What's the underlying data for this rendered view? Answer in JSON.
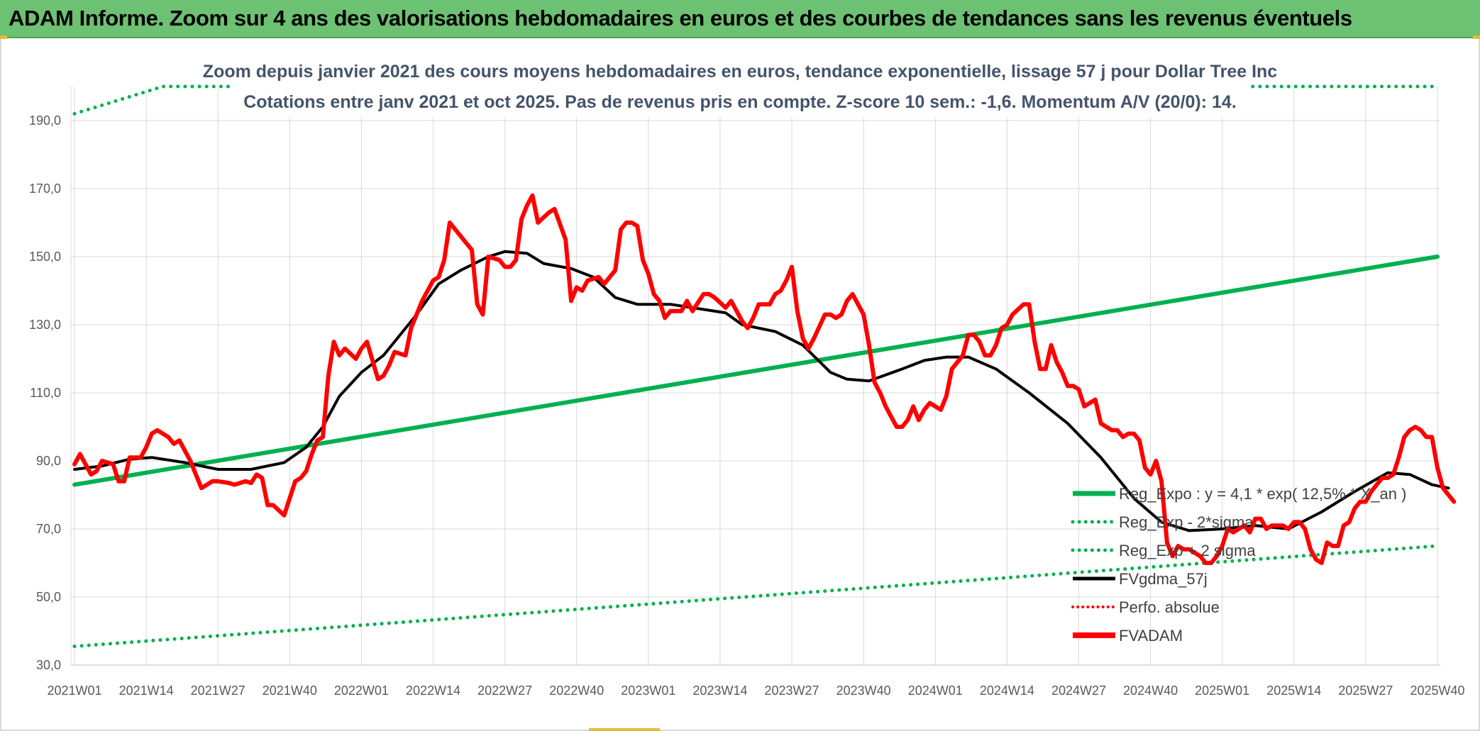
{
  "banner": {
    "title": "ADAM Informe. Zoom sur 4 ans des valorisations hebdomadaires en euros et des courbes de tendances sans les revenus éventuels"
  },
  "chart_data": {
    "type": "line",
    "title_line1": "Zoom depuis janvier 2021 des cours moyens hebdomadaires en euros, tendance exponentielle, lissage 57 j pour Dollar Tree Inc",
    "title_line2": "Cotations entre janv 2021 et oct 2025. Pas de revenus pris en compte. Z-score 10 sem.: -1,6. Momentum A/V (20/0): 14.",
    "ylim": [
      30,
      200
    ],
    "y_ticks": [
      "190,0",
      "170,0",
      "150,0",
      "130,0",
      "110,0",
      "90,0",
      "70,0",
      "50,0",
      "30,0"
    ],
    "y_tick_values": [
      190,
      170,
      150,
      130,
      110,
      90,
      70,
      50,
      30
    ],
    "x_tick_labels": [
      "2021W01",
      "2021W14",
      "2021W27",
      "2021W40",
      "2022W01",
      "2022W14",
      "2022W27",
      "2022W40",
      "2023W01",
      "2023W14",
      "2023W27",
      "2023W40",
      "2024W01",
      "2024W14",
      "2024W27",
      "2024W40",
      "2025W01",
      "2025W14",
      "2025W27",
      "2025W40"
    ],
    "x_tick_weeks": [
      0,
      13,
      26,
      39,
      52,
      65,
      78,
      91,
      104,
      117,
      130,
      143,
      156,
      169,
      182,
      195,
      208,
      221,
      234,
      247
    ],
    "x_max_week": 247,
    "legend": [
      "Reg_Expo : y = 4,1 * exp( 12,5% * X_an )",
      "Reg_Exp - 2*sigma",
      "Reg_Exp + 2 sigma",
      "FVgdma_57j",
      "Perfo. absolue",
      "FVADAM"
    ],
    "colors": {
      "reg": "#00b050",
      "reg_dotted": "#00b050",
      "smooth": "#000000",
      "perfo": "#ff0000",
      "fvadam": "#ff0000"
    },
    "series": [
      {
        "name": "Reg_Expo",
        "points": [
          [
            0,
            83
          ],
          [
            247,
            150
          ]
        ]
      },
      {
        "name": "Reg_Exp - 2*sigma",
        "points": [
          [
            0,
            35.5
          ],
          [
            247,
            65
          ]
        ]
      },
      {
        "name": "Reg_Exp + 2 sigma",
        "points": [
          [
            0,
            192
          ],
          [
            16,
            200
          ],
          [
            247,
            200
          ]
        ]
      },
      {
        "name": "FVgdma_57j",
        "points": [
          [
            0,
            87.5
          ],
          [
            5,
            88.5
          ],
          [
            10,
            90.5
          ],
          [
            14,
            91
          ],
          [
            20,
            89.5
          ],
          [
            26,
            87.5
          ],
          [
            32,
            87.5
          ],
          [
            38,
            89.5
          ],
          [
            42,
            94
          ],
          [
            45,
            100
          ],
          [
            48,
            109
          ],
          [
            52,
            116
          ],
          [
            56,
            121
          ],
          [
            62,
            133
          ],
          [
            66,
            142
          ],
          [
            70,
            146
          ],
          [
            75,
            150
          ],
          [
            78,
            151.5
          ],
          [
            82,
            151
          ],
          [
            85,
            148
          ],
          [
            90,
            146.5
          ],
          [
            94,
            144
          ],
          [
            98,
            138
          ],
          [
            102,
            136
          ],
          [
            108,
            136
          ],
          [
            114,
            134.5
          ],
          [
            118,
            133.5
          ],
          [
            121,
            130
          ],
          [
            127,
            128
          ],
          [
            132,
            124
          ],
          [
            137,
            116
          ],
          [
            140,
            114
          ],
          [
            144,
            113.5
          ],
          [
            150,
            117
          ],
          [
            154,
            119.5
          ],
          [
            158,
            120.5
          ],
          [
            162,
            120.5
          ],
          [
            167,
            117
          ],
          [
            173,
            110
          ],
          [
            180,
            101
          ],
          [
            186,
            91
          ],
          [
            192,
            79
          ],
          [
            197,
            72
          ],
          [
            202,
            69.5
          ],
          [
            208,
            70
          ],
          [
            214,
            71
          ],
          [
            220,
            70
          ],
          [
            226,
            75
          ],
          [
            232,
            81
          ],
          [
            238,
            86.5
          ],
          [
            242,
            86
          ],
          [
            246,
            83
          ],
          [
            249,
            82
          ]
        ]
      },
      {
        "name": "FVADAM",
        "points": [
          [
            0,
            89
          ],
          [
            1,
            92
          ],
          [
            3,
            86
          ],
          [
            4,
            87
          ],
          [
            5,
            90
          ],
          [
            7,
            89
          ],
          [
            8,
            84
          ],
          [
            9,
            84
          ],
          [
            10,
            91
          ],
          [
            12,
            91
          ],
          [
            13,
            94
          ],
          [
            14,
            98
          ],
          [
            15,
            99
          ],
          [
            16,
            98
          ],
          [
            17,
            97
          ],
          [
            18,
            95
          ],
          [
            19,
            96
          ],
          [
            21,
            90
          ],
          [
            23,
            82
          ],
          [
            25,
            84
          ],
          [
            26,
            84
          ],
          [
            28,
            83.5
          ],
          [
            29,
            83
          ],
          [
            31,
            84
          ],
          [
            32,
            83.5
          ],
          [
            33,
            86
          ],
          [
            34,
            85
          ],
          [
            35,
            77
          ],
          [
            36,
            77
          ],
          [
            38,
            74
          ],
          [
            40,
            84
          ],
          [
            41,
            85
          ],
          [
            42,
            87
          ],
          [
            43,
            92
          ],
          [
            44,
            96
          ],
          [
            45,
            97
          ],
          [
            46,
            115
          ],
          [
            47,
            125
          ],
          [
            48,
            121
          ],
          [
            49,
            123
          ],
          [
            51,
            120
          ],
          [
            52,
            123
          ],
          [
            53,
            125
          ],
          [
            55,
            114
          ],
          [
            56,
            115
          ],
          [
            57,
            118
          ],
          [
            58,
            122
          ],
          [
            60,
            121
          ],
          [
            61,
            129
          ],
          [
            63,
            137
          ],
          [
            65,
            143
          ],
          [
            66,
            144
          ],
          [
            67,
            149
          ],
          [
            68,
            160
          ],
          [
            70,
            156
          ],
          [
            72,
            152
          ],
          [
            73,
            136
          ],
          [
            74,
            133
          ],
          [
            75,
            150
          ],
          [
            77,
            149
          ],
          [
            78,
            147
          ],
          [
            79,
            147
          ],
          [
            80,
            149
          ],
          [
            81,
            161
          ],
          [
            82,
            165
          ],
          [
            83,
            168
          ],
          [
            84,
            160
          ],
          [
            86,
            163
          ],
          [
            87,
            164
          ],
          [
            89,
            155
          ],
          [
            90,
            137
          ],
          [
            91,
            141
          ],
          [
            92,
            140
          ],
          [
            93,
            143
          ],
          [
            95,
            144
          ],
          [
            96,
            142
          ],
          [
            97,
            144
          ],
          [
            98,
            146
          ],
          [
            99,
            158
          ],
          [
            100,
            160
          ],
          [
            101,
            160
          ],
          [
            102,
            159
          ],
          [
            103,
            149
          ],
          [
            104,
            145
          ],
          [
            105,
            139
          ],
          [
            106,
            137
          ],
          [
            107,
            132
          ],
          [
            108,
            134
          ],
          [
            110,
            134
          ],
          [
            111,
            137
          ],
          [
            112,
            134
          ],
          [
            114,
            139
          ],
          [
            115,
            139
          ],
          [
            116,
            138
          ],
          [
            118,
            135
          ],
          [
            119,
            137
          ],
          [
            120,
            134
          ],
          [
            121,
            131
          ],
          [
            122,
            129
          ],
          [
            123,
            132
          ],
          [
            124,
            136
          ],
          [
            126,
            136
          ],
          [
            127,
            139
          ],
          [
            128,
            140
          ],
          [
            129,
            143
          ],
          [
            130,
            147
          ],
          [
            131,
            134
          ],
          [
            132,
            126
          ],
          [
            133,
            123
          ],
          [
            134,
            126
          ],
          [
            136,
            133
          ],
          [
            137,
            133
          ],
          [
            138,
            132
          ],
          [
            139,
            133
          ],
          [
            140,
            137
          ],
          [
            141,
            139
          ],
          [
            142,
            136
          ],
          [
            143,
            133
          ],
          [
            144,
            124
          ],
          [
            145,
            113
          ],
          [
            146,
            110
          ],
          [
            147,
            106
          ],
          [
            148,
            103
          ],
          [
            149,
            100
          ],
          [
            150,
            100
          ],
          [
            151,
            102
          ],
          [
            152,
            106
          ],
          [
            153,
            102
          ],
          [
            154,
            105
          ],
          [
            155,
            107
          ],
          [
            156,
            106
          ],
          [
            157,
            105
          ],
          [
            158,
            109
          ],
          [
            159,
            117
          ],
          [
            160,
            119
          ],
          [
            161,
            121
          ],
          [
            162,
            127
          ],
          [
            163,
            127
          ],
          [
            164,
            125
          ],
          [
            165,
            121
          ],
          [
            166,
            121
          ],
          [
            167,
            124
          ],
          [
            168,
            129
          ],
          [
            169,
            130
          ],
          [
            170,
            133
          ],
          [
            172,
            136
          ],
          [
            173,
            136
          ],
          [
            174,
            125
          ],
          [
            175,
            117
          ],
          [
            176,
            117
          ],
          [
            177,
            124
          ],
          [
            178,
            119
          ],
          [
            179,
            116
          ],
          [
            180,
            112
          ],
          [
            181,
            112
          ],
          [
            182,
            111
          ],
          [
            183,
            106
          ],
          [
            184,
            107
          ],
          [
            185,
            108
          ],
          [
            186,
            101
          ],
          [
            188,
            99
          ],
          [
            189,
            99
          ],
          [
            190,
            97
          ],
          [
            191,
            98
          ],
          [
            192,
            98
          ],
          [
            193,
            96
          ],
          [
            194,
            88
          ],
          [
            195,
            86
          ],
          [
            196,
            90
          ],
          [
            197,
            84
          ],
          [
            198,
            66
          ],
          [
            199,
            62
          ],
          [
            200,
            65
          ],
          [
            201,
            64
          ],
          [
            202,
            64
          ],
          [
            204,
            62
          ],
          [
            205,
            60
          ],
          [
            206,
            60
          ],
          [
            207,
            62
          ],
          [
            208,
            65
          ],
          [
            209,
            70
          ],
          [
            210,
            69
          ],
          [
            211,
            70
          ],
          [
            212,
            71
          ],
          [
            213,
            69
          ],
          [
            214,
            73
          ],
          [
            215,
            73
          ],
          [
            216,
            70
          ],
          [
            217,
            71
          ],
          [
            218,
            71
          ],
          [
            219,
            71
          ],
          [
            220,
            70
          ],
          [
            221,
            72
          ],
          [
            222,
            72
          ],
          [
            223,
            70
          ],
          [
            224,
            64
          ],
          [
            225,
            61
          ],
          [
            226,
            60
          ],
          [
            227,
            66
          ],
          [
            228,
            65
          ],
          [
            229,
            65
          ],
          [
            230,
            71
          ],
          [
            231,
            72
          ],
          [
            232,
            76
          ],
          [
            233,
            78
          ],
          [
            234,
            78
          ],
          [
            235,
            81
          ],
          [
            236,
            83
          ],
          [
            237,
            85
          ],
          [
            238,
            85
          ],
          [
            239,
            86
          ],
          [
            240,
            91
          ],
          [
            241,
            97
          ],
          [
            242,
            99
          ],
          [
            243,
            100
          ],
          [
            244,
            99
          ],
          [
            245,
            97
          ],
          [
            246,
            97
          ],
          [
            247,
            88
          ],
          [
            248,
            82
          ],
          [
            249,
            80
          ],
          [
            250,
            78
          ]
        ]
      }
    ]
  }
}
